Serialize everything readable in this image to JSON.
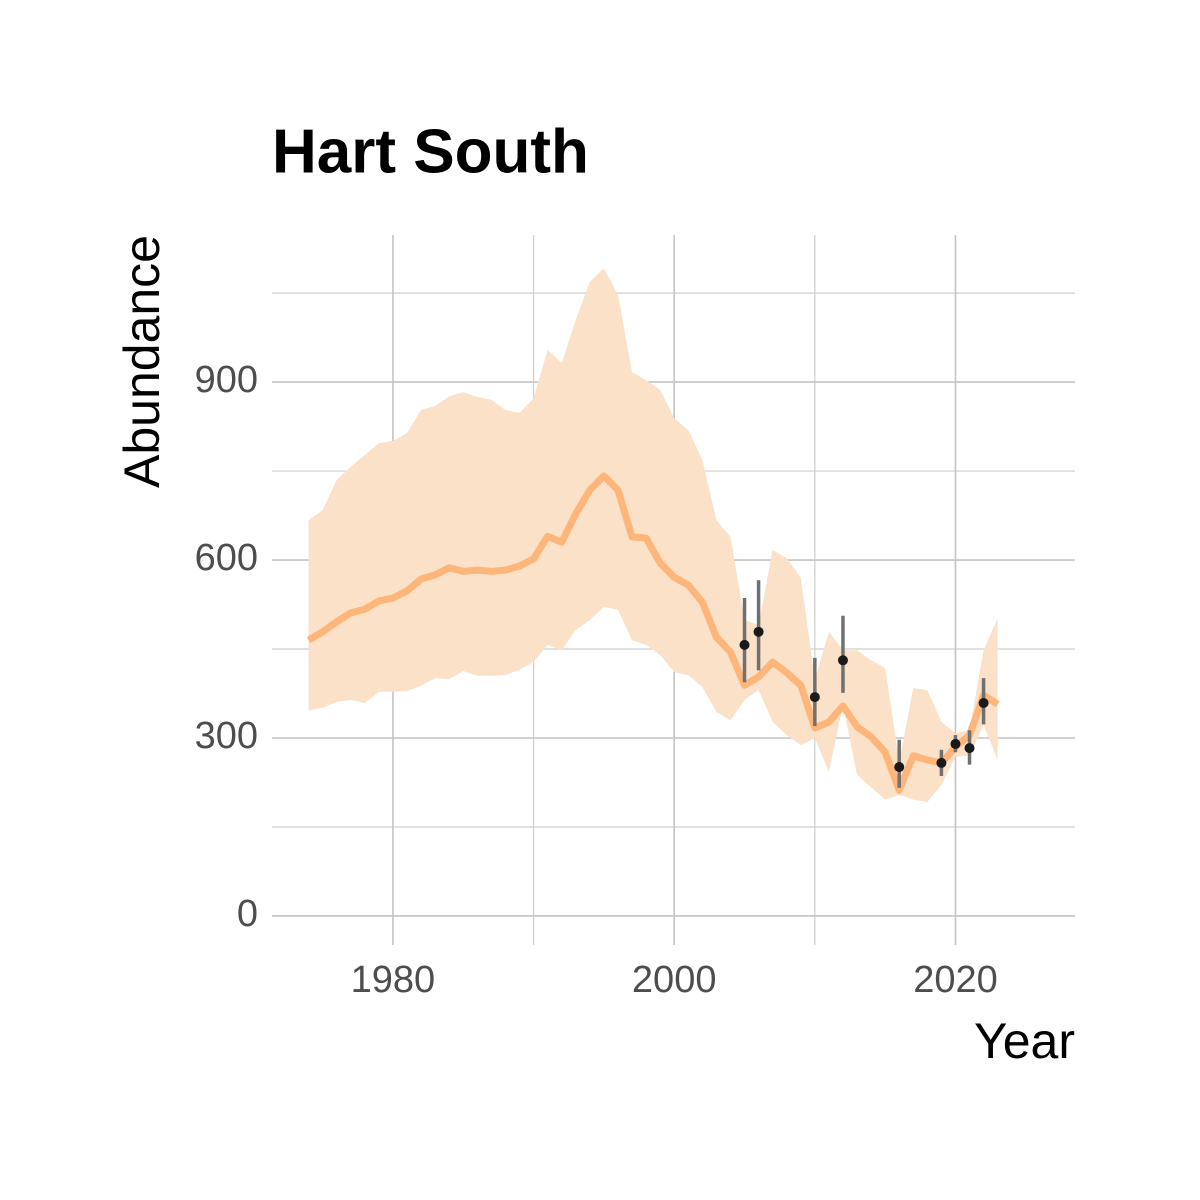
{
  "chart_data": {
    "type": "line",
    "title": "Hart South",
    "x_label": "Year",
    "y_label": "Abundance",
    "x": [
      1974,
      1975,
      1976,
      1977,
      1978,
      1979,
      1980,
      1981,
      1982,
      1983,
      1984,
      1985,
      1986,
      1987,
      1988,
      1989,
      1990,
      1991,
      1992,
      1993,
      1994,
      1995,
      1996,
      1997,
      1998,
      1999,
      2000,
      2001,
      2002,
      2003,
      2004,
      2005,
      2006,
      2007,
      2008,
      2009,
      2010,
      2011,
      2012,
      2013,
      2014,
      2015,
      2016,
      2017,
      2018,
      2019,
      2020,
      2021,
      2022,
      2023
    ],
    "series": [
      {
        "color": "#fdb57a",
        "values": [
          465,
          479,
          496,
          511,
          517,
          531,
          536,
          548,
          568,
          575,
          587,
          581,
          583,
          581,
          583,
          590,
          602,
          640,
          630,
          678,
          718,
          742,
          718,
          639,
          637,
          595,
          571,
          558,
          529,
          470,
          445,
          389,
          403,
          428,
          410,
          389,
          317,
          327,
          354,
          319,
          302,
          276,
          212,
          270,
          263,
          258,
          285,
          305,
          372,
          357
        ]
      }
    ],
    "band": {
      "color": "#fbe1c8",
      "upper": [
        667,
        684,
        735,
        757,
        777,
        797,
        801,
        814,
        853,
        860,
        876,
        883,
        875,
        870,
        853,
        848,
        873,
        954,
        932,
        1005,
        1069,
        1092,
        1047,
        917,
        903,
        887,
        839,
        819,
        769,
        667,
        639,
        499,
        490,
        617,
        603,
        570,
        398,
        479,
        448,
        448,
        431,
        418,
        260,
        384,
        381,
        327,
        308,
        313,
        448,
        502
      ],
      "lower": [
        347,
        351,
        361,
        364,
        359,
        378,
        378,
        379,
        388,
        401,
        399,
        413,
        405,
        405,
        406,
        415,
        428,
        457,
        448,
        482,
        499,
        521,
        516,
        465,
        457,
        440,
        411,
        406,
        386,
        344,
        330,
        364,
        381,
        327,
        305,
        288,
        300,
        243,
        356,
        238,
        217,
        196,
        204,
        196,
        192,
        221,
        268,
        271,
        322,
        263
      ]
    },
    "observations": {
      "color": "#1a1a1a",
      "bar_color": "#707070",
      "x": [
        2005,
        2006,
        2010,
        2012,
        2016,
        2019,
        2020,
        2021,
        2022
      ],
      "values": [
        457,
        479,
        369,
        431,
        251,
        258,
        290,
        283,
        359
      ],
      "lower": [
        394,
        414,
        320,
        376,
        216,
        236,
        276,
        255,
        323
      ],
      "upper": [
        536,
        566,
        435,
        506,
        297,
        280,
        305,
        313,
        401
      ]
    },
    "xlim": [
      1971.4,
      2028.5
    ],
    "ylim": [
      -49,
      1148
    ],
    "xticks": [
      1980,
      2000,
      2020
    ],
    "yticks": [
      0,
      300,
      600,
      900
    ],
    "minor_xticks": [
      1990,
      2010
    ],
    "minor_yticks": [
      150,
      450,
      750,
      1050
    ],
    "grid": true
  }
}
